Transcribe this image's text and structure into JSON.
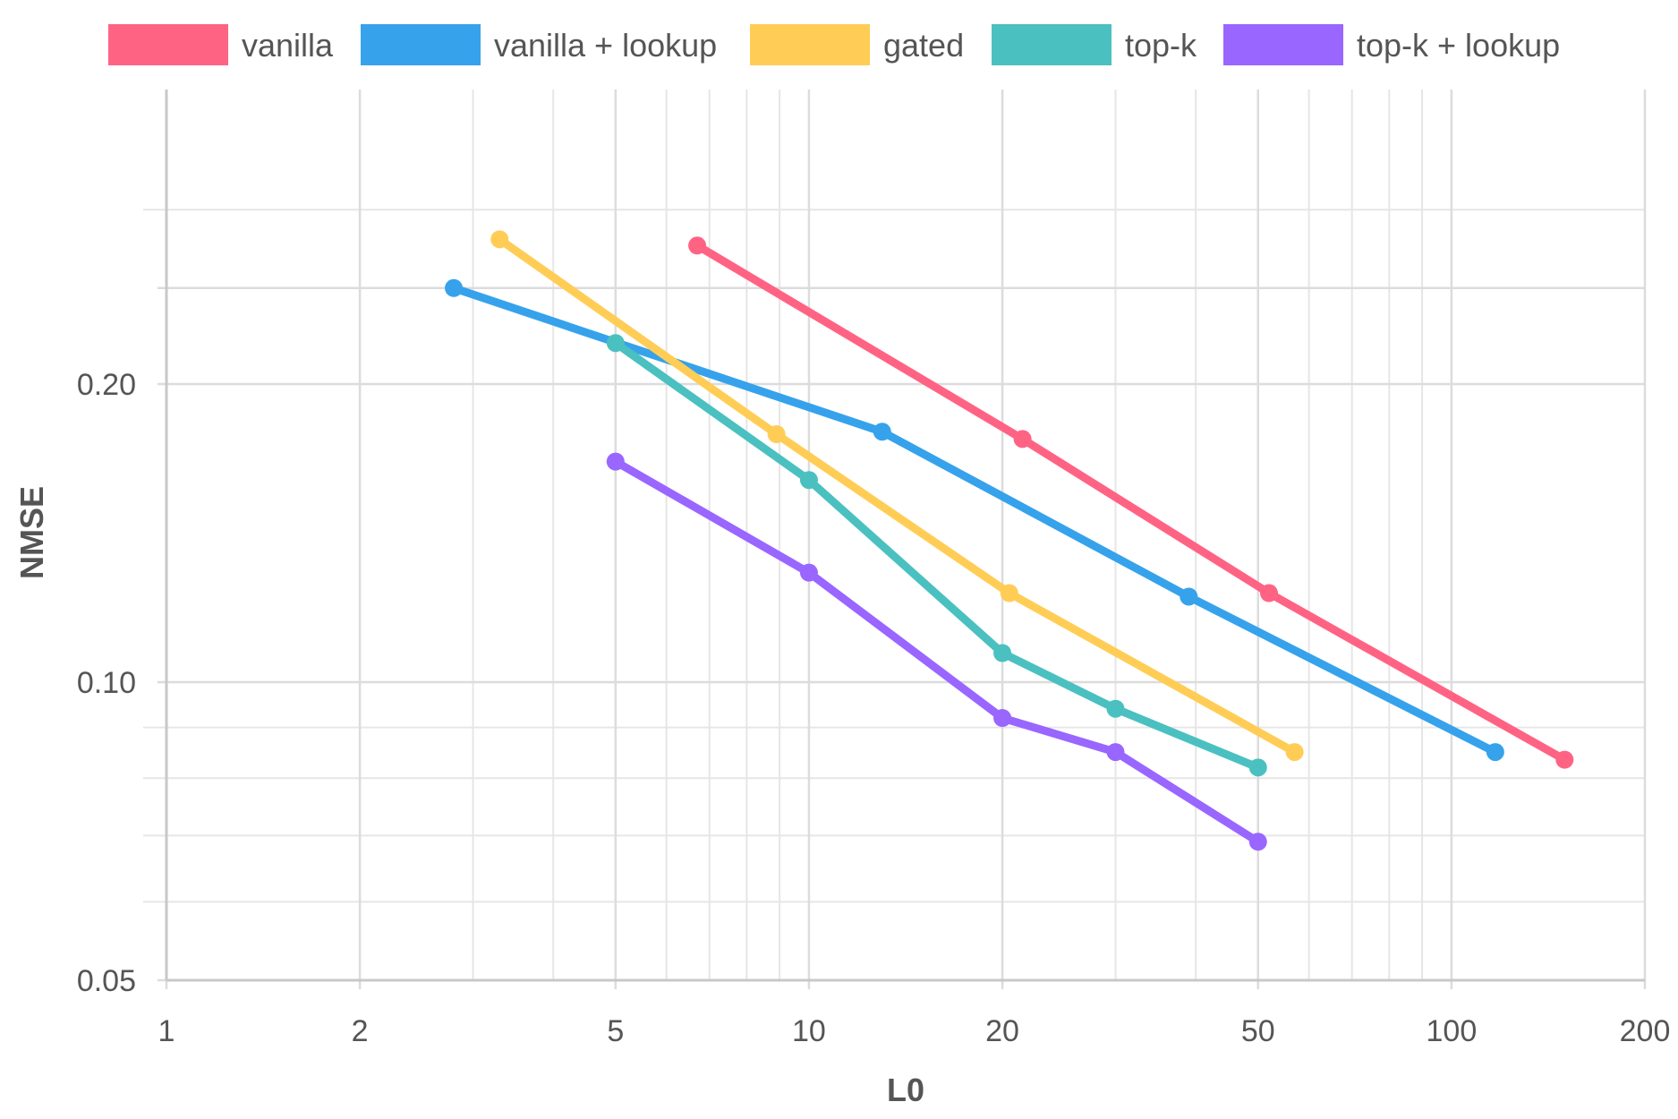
{
  "chart_data": {
    "type": "line",
    "title": "",
    "xlabel": "L0",
    "ylabel": "NMSE",
    "x_scale": "log",
    "y_scale": "log",
    "xlim": [
      1,
      200
    ],
    "ylim": [
      0.05,
      0.3
    ],
    "x_ticks": [
      1,
      2,
      5,
      10,
      20,
      50,
      100,
      200
    ],
    "x_tick_labels": [
      "1",
      "2",
      "5",
      "10",
      "20",
      "50",
      "100",
      "200"
    ],
    "y_ticks": [
      0.05,
      0.1,
      0.2
    ],
    "y_tick_labels": [
      "0.05",
      "0.10",
      "0.20"
    ],
    "grid": true,
    "legend_position": "top",
    "series": [
      {
        "name": "vanilla",
        "color": "#ff6384",
        "x": [
          6.7,
          21.5,
          52,
          150
        ],
        "y": [
          0.276,
          0.176,
          0.123,
          0.0835
        ]
      },
      {
        "name": "vanilla + lookup",
        "color": "#36a2eb",
        "x": [
          2.8,
          13,
          39,
          117
        ],
        "y": [
          0.25,
          0.179,
          0.122,
          0.085
        ]
      },
      {
        "name": "gated",
        "color": "#ffcd56",
        "x": [
          3.3,
          8.9,
          20.5,
          57
        ],
        "y": [
          0.28,
          0.178,
          0.123,
          0.085
        ]
      },
      {
        "name": "top-k",
        "color": "#4bc0c0",
        "x": [
          5,
          10,
          20,
          30,
          50
        ],
        "y": [
          0.22,
          0.16,
          0.107,
          0.094,
          0.082
        ]
      },
      {
        "name": "top-k + lookup",
        "color": "#9966ff",
        "x": [
          5,
          10,
          20,
          30,
          50
        ],
        "y": [
          0.167,
          0.129,
          0.092,
          0.085,
          0.069
        ]
      }
    ]
  }
}
